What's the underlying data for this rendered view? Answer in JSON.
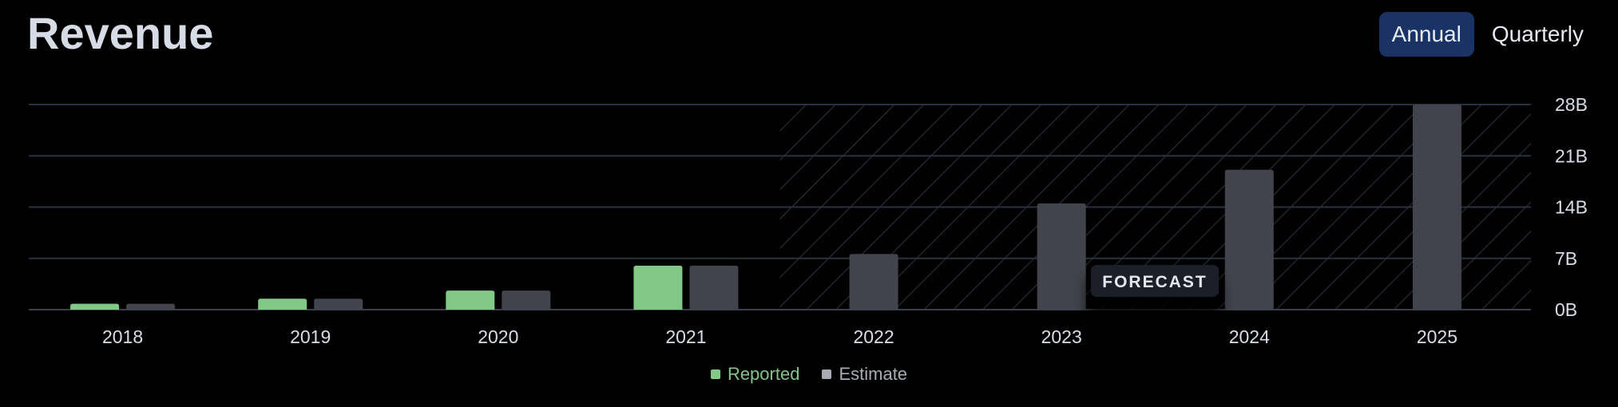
{
  "header": {
    "title": "Revenue",
    "toggle": [
      {
        "label": "Annual",
        "active": true
      },
      {
        "label": "Quarterly",
        "active": false
      }
    ]
  },
  "chart_data": {
    "type": "bar",
    "categories": [
      "2018",
      "2019",
      "2020",
      "2021",
      "2022",
      "2023",
      "2024",
      "2025"
    ],
    "series": [
      {
        "name": "Reported",
        "color": "#82c886",
        "values": [
          0.8,
          1.5,
          2.6,
          6.0,
          null,
          null,
          null,
          null
        ]
      },
      {
        "name": "Estimate",
        "color": "#42434c",
        "values": [
          0.8,
          1.5,
          2.6,
          6.0,
          7.6,
          14.5,
          19.1,
          28.0
        ]
      }
    ],
    "y_ticks": [
      "0B",
      "7B",
      "14B",
      "21B",
      "28B"
    ],
    "y_tick_values": [
      0,
      7,
      14,
      21,
      28
    ],
    "ylim": [
      0,
      28
    ],
    "forecast_label": "FORECAST",
    "forecast_start_category": "2022",
    "grid": true,
    "y_axis_position": "right",
    "legend_position": "bottom-center"
  },
  "legend": [
    {
      "label": "Reported",
      "color": "#82c886",
      "text_color": "#84c488"
    },
    {
      "label": "Estimate",
      "color": "#a8abb4",
      "text_color": "#a9acb5"
    }
  ]
}
